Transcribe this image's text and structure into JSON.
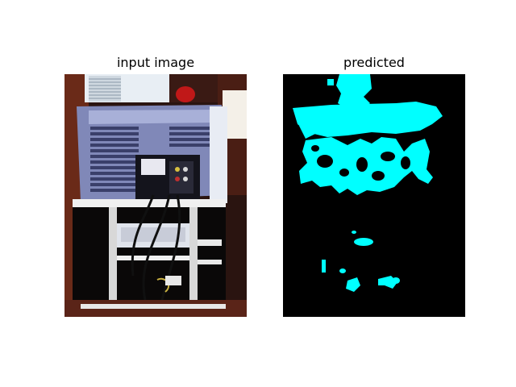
{
  "panels": {
    "input": {
      "title": "input image"
    },
    "predicted": {
      "title": "predicted"
    }
  },
  "colors": {
    "background": "#ffffff",
    "mask_background": "#000000",
    "mask_foreground": "#00ffff"
  }
}
